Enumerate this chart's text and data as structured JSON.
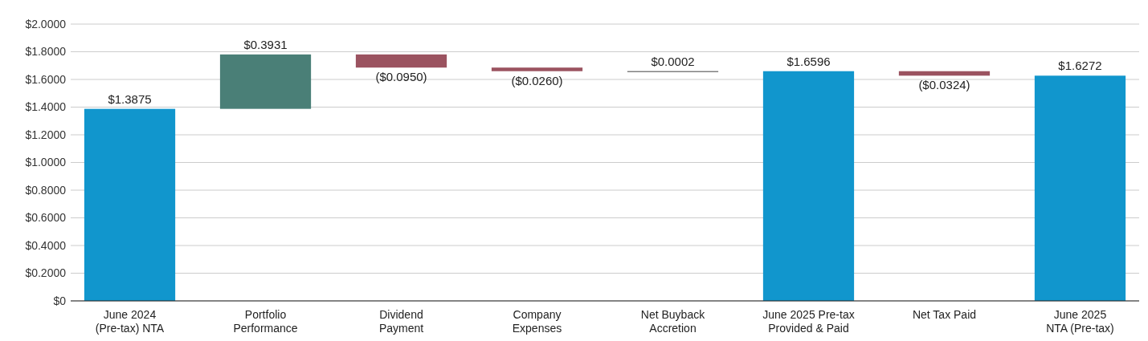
{
  "chart_data": {
    "type": "bar",
    "categories": [
      "June 2024\n(Pre-tax) NTA",
      "Portfolio\nPerformance",
      "Dividend\nPayment",
      "Company\nExpenses",
      "Net Buyback\nAccretion",
      "June 2025 Pre-tax\nProvided & Paid",
      "Net Tax Paid",
      "June 2025\nNTA (Pre-tax)"
    ],
    "values": [
      1.3875,
      0.3931,
      -0.095,
      -0.026,
      0.0002,
      1.6596,
      -0.0324,
      1.6272
    ],
    "base": [
      0,
      1.3875,
      1.7806,
      1.6856,
      1.6596,
      0,
      1.6596,
      0
    ],
    "colors": [
      "#1196cd",
      "#4a7f77",
      "#9b5360",
      "#9b5360",
      "#444444",
      "#1196cd",
      "#9b5360",
      "#1196cd"
    ],
    "value_labels": [
      "$1.3875",
      "$0.3931",
      "($0.0950)",
      "($0.0260)",
      "$0.0002",
      "$1.6596",
      "($0.0324)",
      "$1.6272"
    ],
    "ylim": [
      0,
      2
    ],
    "yticks": [
      {
        "value": 0,
        "label": "$0"
      },
      {
        "value": 0.2,
        "label": "$0.2000"
      },
      {
        "value": 0.4,
        "label": "$0.4000"
      },
      {
        "value": 0.6,
        "label": "$0.6000"
      },
      {
        "value": 0.8,
        "label": "$0.8000"
      },
      {
        "value": 1,
        "label": "$1.0000"
      },
      {
        "value": 1.2,
        "label": "$1.2000"
      },
      {
        "value": 1.4,
        "label": "$1.4000"
      },
      {
        "value": 1.6,
        "label": "$1.6000"
      },
      {
        "value": 1.8,
        "label": "$1.8000"
      },
      {
        "value": 2,
        "label": "$2.0000"
      }
    ],
    "grid": "y"
  }
}
